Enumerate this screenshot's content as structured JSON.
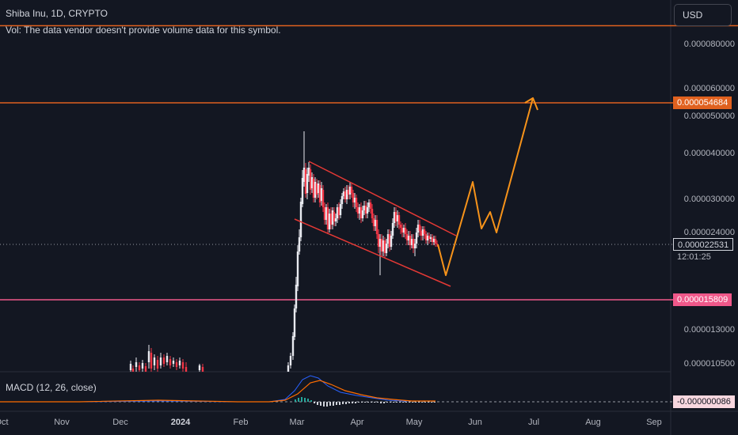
{
  "header": {
    "symbol": "Shiba Inu, 1D, CRYPTO",
    "volume_note": "Vol: The data vendor doesn't provide volume data for this symbol.",
    "macd_label": "MACD (12, 26, close)"
  },
  "currency_button": "USD",
  "price_axis": [
    "0.000080000",
    "0.000060000",
    "0.000050000",
    "0.000040000",
    "0.000030000",
    "0.000024000",
    "0.000013000",
    "0.000010500"
  ],
  "tags": {
    "resistance": "0.000054684",
    "current_price": "0.000022531",
    "countdown": "12:01:25",
    "support": "0.000015809",
    "macd_value": "-0.000000086"
  },
  "time_axis": [
    "Oct",
    "Nov",
    "Dec",
    "2024",
    "Feb",
    "Mar",
    "Apr",
    "May",
    "Jun",
    "Jul",
    "Aug",
    "Sep"
  ],
  "colors": {
    "background": "#131722",
    "up": "#e8eaf0",
    "down": "#f23645",
    "resistance_line": "#e0611f",
    "support_line": "#f0588a",
    "channel": "#e53935",
    "projection": "#f7931a",
    "macd": "#2962ff",
    "signal": "#ff6d00"
  }
}
